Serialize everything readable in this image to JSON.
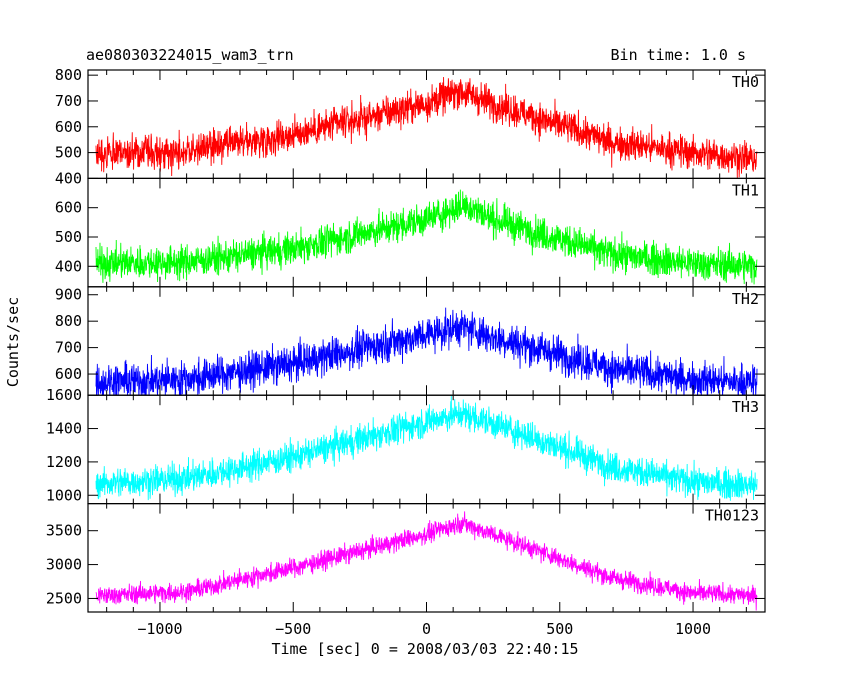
{
  "chart_data": {
    "type": "line",
    "title": "ae080303224015_wam3_trn",
    "subtitle": "Bin time: 1.0 s",
    "xlabel": "Time [sec] 0 = 2008/03/03 22:40:15",
    "ylabel": "Counts/sec",
    "xlim": [
      -1270,
      1270
    ],
    "xticks": [
      -1000,
      -500,
      0,
      500,
      1000
    ],
    "xtick_labels": [
      "−1000",
      "−500",
      "0",
      "500",
      "1000"
    ],
    "grid": false,
    "panels": [
      {
        "name": "TH0",
        "color": "#ff0000",
        "ylim": [
          400,
          820
        ],
        "yticks": [
          400,
          500,
          600,
          700,
          800
        ],
        "ytick_labels": [
          "400",
          "500",
          "600",
          "700",
          "800"
        ],
        "profile": {
          "x": [
            -1240,
            -900,
            -500,
            0,
            120,
            250,
            700,
            1000,
            1240
          ],
          "y": [
            495,
            505,
            570,
            690,
            740,
            690,
            540,
            500,
            475
          ]
        },
        "noise": 32
      },
      {
        "name": "TH1",
        "color": "#00ff00",
        "ylim": [
          330,
          700
        ],
        "yticks": [
          400,
          500,
          600
        ],
        "ytick_labels": [
          "400",
          "500",
          "600"
        ],
        "profile": {
          "x": [
            -1240,
            -900,
            -500,
            0,
            150,
            250,
            700,
            1000,
            1240
          ],
          "y": [
            410,
            415,
            460,
            560,
            610,
            560,
            440,
            410,
            400
          ]
        },
        "noise": 28
      },
      {
        "name": "TH2",
        "color": "#0000ff",
        "ylim": [
          520,
          930
        ],
        "yticks": [
          600,
          700,
          800,
          900
        ],
        "ytick_labels": [
          "600",
          "700",
          "800",
          "900"
        ],
        "profile": {
          "x": [
            -1240,
            -900,
            -500,
            0,
            130,
            250,
            700,
            1000,
            1240
          ],
          "y": [
            570,
            580,
            640,
            750,
            780,
            740,
            620,
            580,
            565
          ]
        },
        "noise": 34
      },
      {
        "name": "TH3",
        "color": "#00ffff",
        "ylim": [
          950,
          1600
        ],
        "yticks": [
          1000,
          1200,
          1400,
          1600
        ],
        "ytick_labels": [
          "1000",
          "1200",
          "1400",
          "1600"
        ],
        "profile": {
          "x": [
            -1240,
            -900,
            -500,
            0,
            130,
            250,
            700,
            1000,
            1240
          ],
          "y": [
            1070,
            1100,
            1230,
            1440,
            1490,
            1430,
            1170,
            1080,
            1060
          ]
        },
        "noise": 45
      },
      {
        "name": "TH0123",
        "color": "#ff00ff",
        "ylim": [
          2300,
          3900
        ],
        "yticks": [
          2500,
          3000,
          3500
        ],
        "ytick_labels": [
          "2500",
          "3000",
          "3500"
        ],
        "profile": {
          "x": [
            -1240,
            -900,
            -500,
            0,
            130,
            250,
            700,
            1000,
            1240
          ],
          "y": [
            2540,
            2600,
            2950,
            3450,
            3620,
            3450,
            2800,
            2580,
            2540
          ]
        },
        "noise": 70
      }
    ]
  }
}
